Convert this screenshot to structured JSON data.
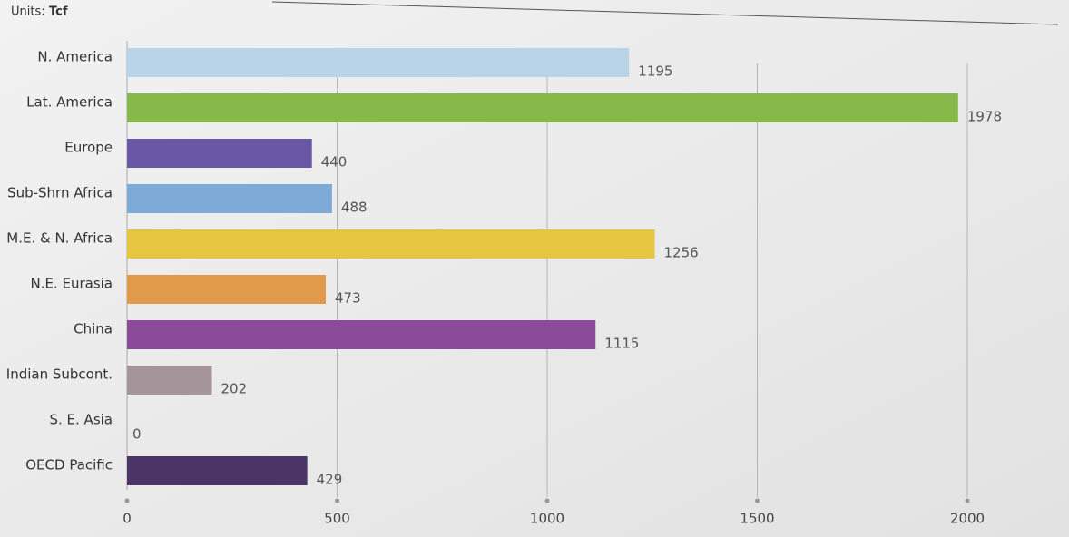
{
  "chart_data": {
    "type": "bar",
    "orientation": "horizontal",
    "units_label": "Units:",
    "units": "Tcf",
    "categories": [
      "N. America",
      "Lat. America",
      "Europe",
      "Sub-Shrn Africa",
      "M.E. & N. Africa",
      "N.E. Eurasia",
      "China",
      "Indian Subcont.",
      "S. E. Asia",
      "OECD Pacific"
    ],
    "values": [
      1195,
      1978,
      440,
      488,
      1256,
      473,
      1115,
      202,
      0,
      429
    ],
    "colors": [
      "#b9d4e8",
      "#86b84a",
      "#6a58a6",
      "#7eaad8",
      "#e6c540",
      "#e19a4a",
      "#8a4c98",
      "#a5959b",
      "#777777",
      "#4a3566"
    ],
    "xlim": [
      0,
      2000
    ],
    "xticks": [
      0,
      500,
      1000,
      1500,
      2000
    ],
    "grid": true
  }
}
